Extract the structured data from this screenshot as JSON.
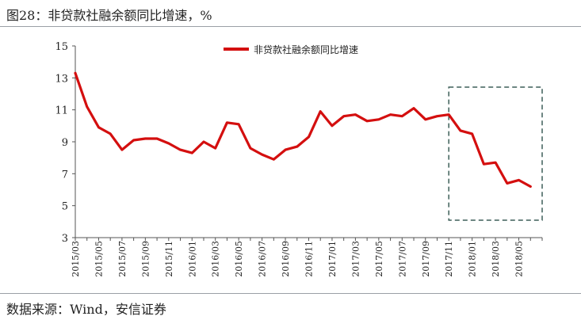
{
  "figure": {
    "title": "图28：非贷款社融余额同比增速，%",
    "source": "数据来源：Wind，安信证券"
  },
  "chart_data": {
    "type": "line",
    "title": "",
    "xlabel": "",
    "ylabel": "",
    "ylim": [
      3,
      15
    ],
    "yticks": [
      3,
      5,
      7,
      9,
      11,
      13,
      15
    ],
    "xtick_labels": [
      "2015/03",
      "2015/05",
      "2015/07",
      "2015/09",
      "2015/11",
      "2016/01",
      "2016/03",
      "2016/05",
      "2016/07",
      "2016/09",
      "2016/11",
      "2017/01",
      "2017/03",
      "2017/05",
      "2017/07",
      "2017/09",
      "2017/11",
      "2018/01",
      "2018/03",
      "2018/05"
    ],
    "legend": "top-center",
    "grid": false,
    "highlight_box": {
      "x_from": "2017/11",
      "x_to": "2018/06",
      "style": "dashed"
    },
    "series": [
      {
        "name": "非贷款社融余额同比增速",
        "color": "#d40f0f",
        "x": [
          "2015/03",
          "2015/04",
          "2015/05",
          "2015/06",
          "2015/07",
          "2015/08",
          "2015/09",
          "2015/10",
          "2015/11",
          "2015/12",
          "2016/01",
          "2016/02",
          "2016/03",
          "2016/04",
          "2016/05",
          "2016/06",
          "2016/07",
          "2016/08",
          "2016/09",
          "2016/10",
          "2016/11",
          "2016/12",
          "2017/01",
          "2017/02",
          "2017/03",
          "2017/04",
          "2017/05",
          "2017/06",
          "2017/07",
          "2017/08",
          "2017/09",
          "2017/10",
          "2017/11",
          "2017/12",
          "2018/01",
          "2018/02",
          "2018/03",
          "2018/04",
          "2018/05",
          "2018/06"
        ],
        "values": [
          13.3,
          11.2,
          9.9,
          9.5,
          8.5,
          9.1,
          9.2,
          9.2,
          8.9,
          8.5,
          8.3,
          9.0,
          8.6,
          10.2,
          10.1,
          8.6,
          8.2,
          7.9,
          8.5,
          8.7,
          9.3,
          10.9,
          10.0,
          10.6,
          10.7,
          10.3,
          10.4,
          10.7,
          10.6,
          11.1,
          10.4,
          10.6,
          10.7,
          9.7,
          9.5,
          7.6,
          7.7,
          6.4,
          6.6,
          6.2
        ]
      }
    ]
  }
}
